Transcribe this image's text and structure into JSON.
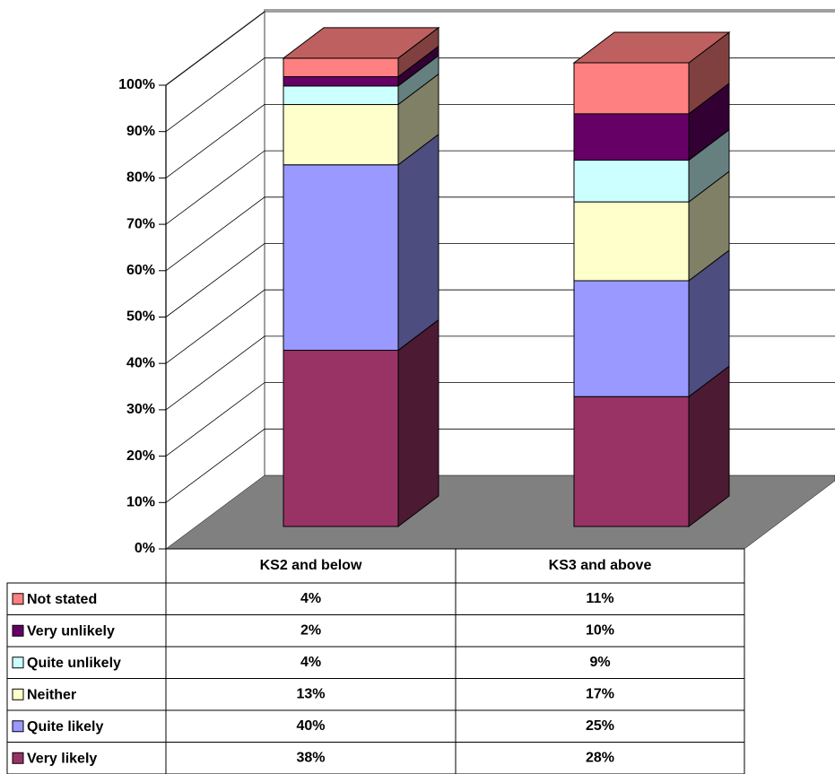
{
  "chart_data": {
    "type": "bar3d_stacked",
    "categories": [
      "KS2 and below",
      "KS3 and above"
    ],
    "series": [
      {
        "name": "Not stated",
        "color": "#ff8080",
        "values": [
          4,
          11
        ],
        "value_labels": [
          "4%",
          "11%"
        ]
      },
      {
        "name": "Very unlikely",
        "color": "#660066",
        "values": [
          2,
          10
        ],
        "value_labels": [
          "2%",
          "10%"
        ]
      },
      {
        "name": "Quite unlikely",
        "color": "#ccffff",
        "values": [
          4,
          9
        ],
        "value_labels": [
          "4%",
          "9%"
        ]
      },
      {
        "name": "Neither",
        "color": "#ffffcc",
        "values": [
          13,
          17
        ],
        "value_labels": [
          "13%",
          "17%"
        ]
      },
      {
        "name": "Quite likely",
        "color": "#9999ff",
        "values": [
          40,
          25
        ],
        "value_labels": [
          "40%",
          "25%"
        ]
      },
      {
        "name": "Very likely",
        "color": "#993366",
        "values": [
          38,
          28
        ],
        "value_labels": [
          "38%",
          "28%"
        ]
      }
    ],
    "ylim": [
      0,
      100
    ],
    "yticks": [
      {
        "value": 0,
        "label": "0%"
      },
      {
        "value": 10,
        "label": "10%"
      },
      {
        "value": 20,
        "label": "20%"
      },
      {
        "value": 30,
        "label": "30%"
      },
      {
        "value": 40,
        "label": "40%"
      },
      {
        "value": 50,
        "label": "50%"
      },
      {
        "value": 60,
        "label": "60%"
      },
      {
        "value": 70,
        "label": "70%"
      },
      {
        "value": 80,
        "label": "80%"
      },
      {
        "value": 90,
        "label": "90%"
      },
      {
        "value": 100,
        "label": "100%"
      }
    ],
    "grid": true
  }
}
